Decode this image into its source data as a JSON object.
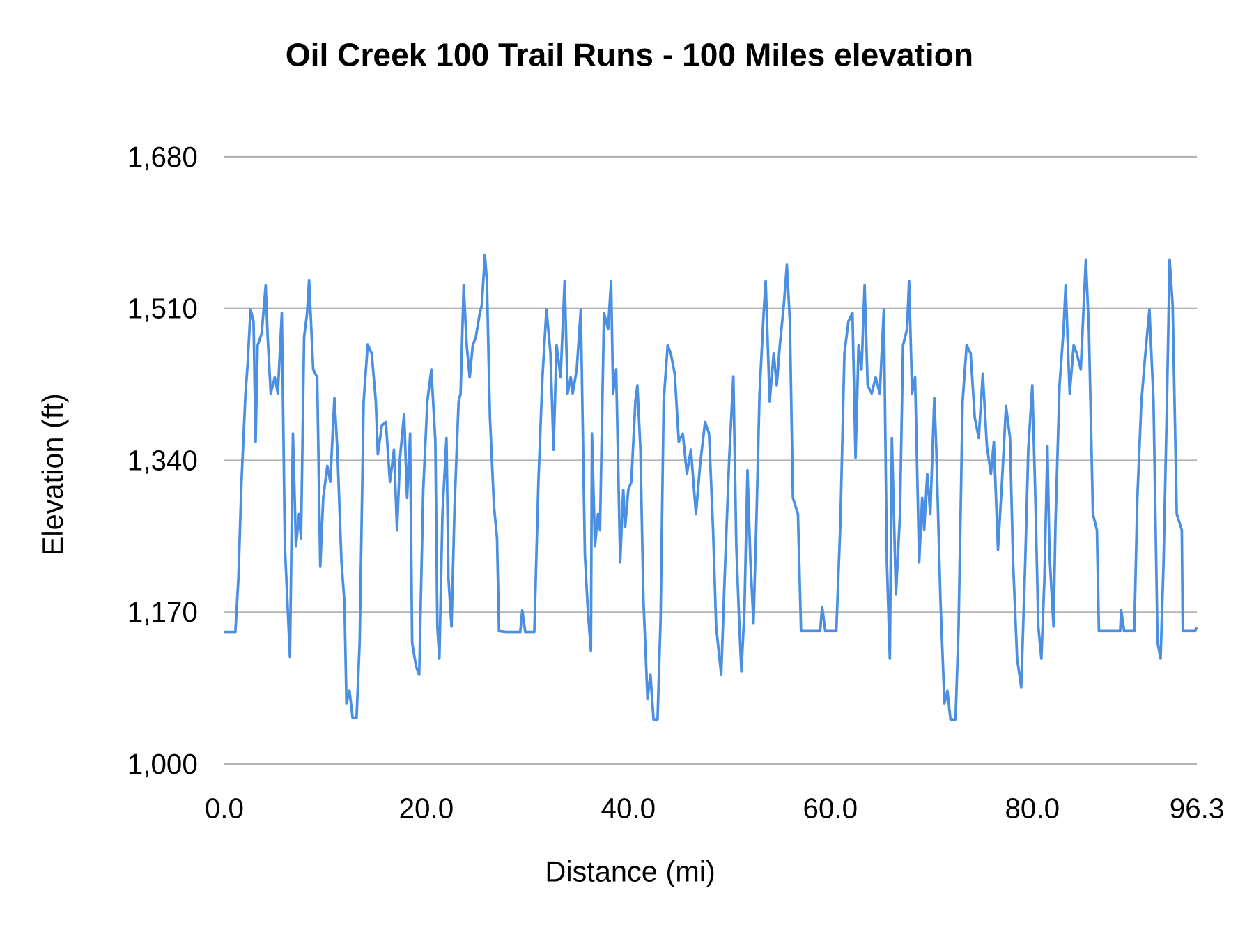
{
  "chart_data": {
    "type": "line",
    "title": "Oil Creek 100 Trail Runs - 100 Miles elevation",
    "xlabel": "Distance (mi)",
    "ylabel": "Elevation (ft)",
    "xlim": [
      0,
      96.3
    ],
    "ylim": [
      1000,
      1680
    ],
    "x_ticks": [
      "0.0",
      "20.0",
      "40.0",
      "60.0",
      "80.0",
      "96.3"
    ],
    "x_tick_values": [
      0,
      20,
      40,
      60,
      80,
      96.3
    ],
    "y_ticks": [
      "1,000",
      "1,170",
      "1,340",
      "1,510",
      "1,680"
    ],
    "y_tick_values": [
      1000,
      1170,
      1340,
      1510,
      1680
    ],
    "grid": "horizontal",
    "legend": "none",
    "line_color": "#4a8fe2",
    "series": [
      {
        "points": [
          [
            0,
            1148
          ],
          [
            1.1,
            1148
          ],
          [
            1.4,
            1208
          ],
          [
            1.7,
            1316
          ],
          [
            2.1,
            1415
          ],
          [
            2.3,
            1446
          ],
          [
            2.6,
            1509
          ],
          [
            2.9,
            1496
          ],
          [
            3.1,
            1361
          ],
          [
            3.3,
            1469
          ],
          [
            3.7,
            1482
          ],
          [
            4.1,
            1536
          ],
          [
            4.3,
            1478
          ],
          [
            4.6,
            1415
          ],
          [
            5.0,
            1433
          ],
          [
            5.3,
            1415
          ],
          [
            5.7,
            1505
          ],
          [
            6.0,
            1244
          ],
          [
            6.5,
            1120
          ],
          [
            6.8,
            1370
          ],
          [
            7.1,
            1244
          ],
          [
            7.4,
            1280
          ],
          [
            7.6,
            1253
          ],
          [
            7.9,
            1478
          ],
          [
            8.2,
            1505
          ],
          [
            8.4,
            1542
          ],
          [
            8.8,
            1442
          ],
          [
            9.2,
            1433
          ],
          [
            9.5,
            1221
          ],
          [
            9.8,
            1298
          ],
          [
            10.2,
            1334
          ],
          [
            10.5,
            1316
          ],
          [
            10.9,
            1410
          ],
          [
            11.2,
            1352
          ],
          [
            11.6,
            1226
          ],
          [
            11.9,
            1181
          ],
          [
            12.1,
            1068
          ],
          [
            12.4,
            1082
          ],
          [
            12.7,
            1052
          ],
          [
            13.1,
            1052
          ],
          [
            13.4,
            1136
          ],
          [
            13.8,
            1406
          ],
          [
            14.2,
            1470
          ],
          [
            14.6,
            1460
          ],
          [
            15.0,
            1406
          ],
          [
            15.2,
            1347
          ],
          [
            15.6,
            1379
          ],
          [
            16.0,
            1383
          ],
          [
            16.4,
            1316
          ],
          [
            16.8,
            1352
          ],
          [
            17.1,
            1262
          ],
          [
            17.4,
            1343
          ],
          [
            17.8,
            1392
          ],
          [
            18.1,
            1298
          ],
          [
            18.4,
            1370
          ],
          [
            18.6,
            1136
          ],
          [
            19.0,
            1109
          ],
          [
            19.3,
            1100
          ],
          [
            19.7,
            1307
          ],
          [
            20.1,
            1406
          ],
          [
            20.5,
            1442
          ],
          [
            20.9,
            1361
          ],
          [
            21.1,
            1154
          ],
          [
            21.3,
            1118
          ],
          [
            21.6,
            1280
          ],
          [
            22.0,
            1365
          ],
          [
            22.2,
            1208
          ],
          [
            22.5,
            1154
          ],
          [
            22.8,
            1289
          ],
          [
            23.2,
            1406
          ],
          [
            23.4,
            1415
          ],
          [
            23.7,
            1536
          ],
          [
            24.0,
            1469
          ],
          [
            24.3,
            1433
          ],
          [
            24.6,
            1469
          ],
          [
            24.9,
            1478
          ],
          [
            25.3,
            1505
          ],
          [
            25.5,
            1514
          ],
          [
            25.8,
            1570
          ],
          [
            26.0,
            1541
          ],
          [
            26.3,
            1388
          ],
          [
            26.7,
            1289
          ],
          [
            27.0,
            1253
          ],
          [
            27.2,
            1149
          ],
          [
            27.9,
            1148
          ],
          [
            29.3,
            1148
          ],
          [
            29.5,
            1172
          ],
          [
            29.8,
            1148
          ],
          [
            30.7,
            1148
          ],
          [
            31.1,
            1316
          ],
          [
            31.5,
            1433
          ],
          [
            31.9,
            1509
          ],
          [
            32.3,
            1460
          ],
          [
            32.6,
            1352
          ],
          [
            32.9,
            1469
          ],
          [
            33.3,
            1433
          ],
          [
            33.7,
            1541
          ],
          [
            34.0,
            1415
          ],
          [
            34.3,
            1433
          ],
          [
            34.5,
            1415
          ],
          [
            34.9,
            1442
          ],
          [
            35.3,
            1509
          ],
          [
            35.7,
            1235
          ],
          [
            36.0,
            1172
          ],
          [
            36.3,
            1127
          ],
          [
            36.4,
            1370
          ],
          [
            36.7,
            1244
          ],
          [
            37.0,
            1280
          ],
          [
            37.2,
            1262
          ],
          [
            37.6,
            1505
          ],
          [
            38.0,
            1487
          ],
          [
            38.3,
            1541
          ],
          [
            38.5,
            1415
          ],
          [
            38.8,
            1442
          ],
          [
            39.2,
            1226
          ],
          [
            39.5,
            1307
          ],
          [
            39.7,
            1266
          ],
          [
            40.0,
            1307
          ],
          [
            40.3,
            1316
          ],
          [
            40.7,
            1406
          ],
          [
            40.9,
            1424
          ],
          [
            41.2,
            1352
          ],
          [
            41.5,
            1185
          ],
          [
            41.9,
            1073
          ],
          [
            42.2,
            1100
          ],
          [
            42.5,
            1050
          ],
          [
            42.9,
            1050
          ],
          [
            43.2,
            1163
          ],
          [
            43.5,
            1406
          ],
          [
            43.9,
            1469
          ],
          [
            44.2,
            1460
          ],
          [
            44.6,
            1437
          ],
          [
            45.0,
            1361
          ],
          [
            45.4,
            1370
          ],
          [
            45.8,
            1325
          ],
          [
            46.2,
            1352
          ],
          [
            46.7,
            1280
          ],
          [
            47.1,
            1334
          ],
          [
            47.6,
            1383
          ],
          [
            48.0,
            1370
          ],
          [
            48.4,
            1262
          ],
          [
            48.7,
            1154
          ],
          [
            49.2,
            1100
          ],
          [
            49.6,
            1226
          ],
          [
            50.0,
            1343
          ],
          [
            50.4,
            1434
          ],
          [
            50.7,
            1244
          ],
          [
            51.0,
            1154
          ],
          [
            51.2,
            1104
          ],
          [
            51.5,
            1172
          ],
          [
            51.8,
            1329
          ],
          [
            52.1,
            1226
          ],
          [
            52.4,
            1158
          ],
          [
            52.7,
            1280
          ],
          [
            53.0,
            1415
          ],
          [
            53.4,
            1505
          ],
          [
            53.6,
            1541
          ],
          [
            54.0,
            1406
          ],
          [
            54.4,
            1460
          ],
          [
            54.7,
            1424
          ],
          [
            55.0,
            1469
          ],
          [
            55.4,
            1514
          ],
          [
            55.7,
            1559
          ],
          [
            56.0,
            1496
          ],
          [
            56.3,
            1298
          ],
          [
            56.8,
            1280
          ],
          [
            57.1,
            1149
          ],
          [
            59.0,
            1149
          ],
          [
            59.2,
            1176
          ],
          [
            59.5,
            1149
          ],
          [
            60.6,
            1149
          ],
          [
            61.0,
            1271
          ],
          [
            61.4,
            1460
          ],
          [
            61.8,
            1496
          ],
          [
            62.2,
            1505
          ],
          [
            62.5,
            1343
          ],
          [
            62.8,
            1469
          ],
          [
            63.1,
            1442
          ],
          [
            63.4,
            1536
          ],
          [
            63.7,
            1424
          ],
          [
            64.1,
            1415
          ],
          [
            64.5,
            1433
          ],
          [
            64.9,
            1415
          ],
          [
            65.3,
            1509
          ],
          [
            65.6,
            1226
          ],
          [
            65.9,
            1118
          ],
          [
            66.1,
            1365
          ],
          [
            66.5,
            1190
          ],
          [
            66.9,
            1280
          ],
          [
            67.2,
            1469
          ],
          [
            67.6,
            1487
          ],
          [
            67.8,
            1541
          ],
          [
            68.1,
            1415
          ],
          [
            68.4,
            1433
          ],
          [
            68.8,
            1226
          ],
          [
            69.1,
            1298
          ],
          [
            69.3,
            1262
          ],
          [
            69.6,
            1325
          ],
          [
            69.9,
            1280
          ],
          [
            70.3,
            1410
          ],
          [
            70.5,
            1352
          ],
          [
            70.9,
            1185
          ],
          [
            71.3,
            1068
          ],
          [
            71.6,
            1082
          ],
          [
            71.9,
            1050
          ],
          [
            72.4,
            1050
          ],
          [
            72.7,
            1154
          ],
          [
            73.1,
            1406
          ],
          [
            73.5,
            1469
          ],
          [
            73.9,
            1460
          ],
          [
            74.3,
            1388
          ],
          [
            74.7,
            1365
          ],
          [
            75.1,
            1437
          ],
          [
            75.5,
            1356
          ],
          [
            75.9,
            1325
          ],
          [
            76.2,
            1361
          ],
          [
            76.6,
            1240
          ],
          [
            77.0,
            1316
          ],
          [
            77.4,
            1401
          ],
          [
            77.8,
            1365
          ],
          [
            78.1,
            1226
          ],
          [
            78.5,
            1118
          ],
          [
            78.9,
            1086
          ],
          [
            79.3,
            1226
          ],
          [
            79.6,
            1352
          ],
          [
            80.0,
            1424
          ],
          [
            80.3,
            1298
          ],
          [
            80.6,
            1154
          ],
          [
            80.9,
            1118
          ],
          [
            81.2,
            1208
          ],
          [
            81.5,
            1356
          ],
          [
            81.7,
            1235
          ],
          [
            82.1,
            1154
          ],
          [
            82.3,
            1271
          ],
          [
            82.7,
            1424
          ],
          [
            83.1,
            1487
          ],
          [
            83.3,
            1536
          ],
          [
            83.7,
            1415
          ],
          [
            84.1,
            1469
          ],
          [
            84.4,
            1460
          ],
          [
            84.8,
            1442
          ],
          [
            85.3,
            1565
          ],
          [
            85.6,
            1487
          ],
          [
            86.0,
            1280
          ],
          [
            86.4,
            1262
          ],
          [
            86.6,
            1149
          ],
          [
            88.7,
            1149
          ],
          [
            88.8,
            1172
          ],
          [
            89.1,
            1149
          ],
          [
            90.1,
            1149
          ],
          [
            90.4,
            1298
          ],
          [
            90.8,
            1406
          ],
          [
            91.2,
            1460
          ],
          [
            91.6,
            1509
          ],
          [
            92.0,
            1406
          ],
          [
            92.4,
            1136
          ],
          [
            92.7,
            1118
          ],
          [
            93.0,
            1226
          ],
          [
            93.3,
            1388
          ],
          [
            93.6,
            1565
          ],
          [
            93.9,
            1514
          ],
          [
            94.3,
            1280
          ],
          [
            94.8,
            1262
          ],
          [
            94.9,
            1149
          ],
          [
            96.1,
            1149
          ],
          [
            96.3,
            1153
          ]
        ]
      }
    ]
  }
}
